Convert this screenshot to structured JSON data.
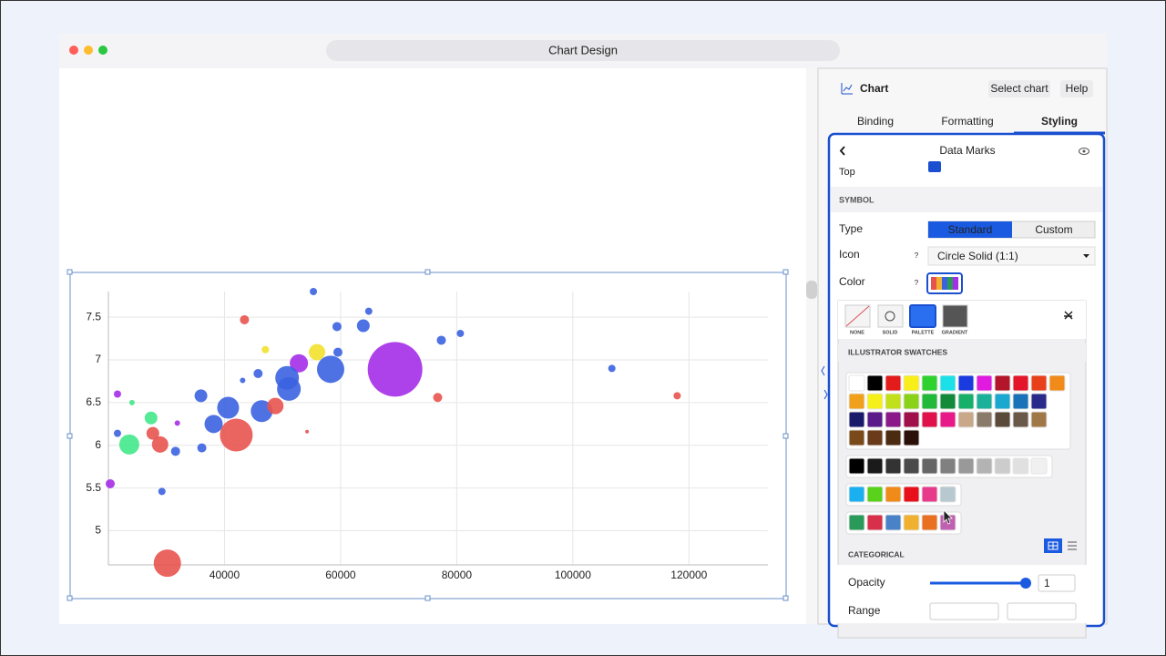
{
  "window": {
    "title": "Chart Design"
  },
  "panel": {
    "header": "Chart",
    "buttons": [
      "Select chart",
      "Help"
    ],
    "tabs": [
      "Binding",
      "Formatting",
      "Styling"
    ],
    "section_title": "Data Marks",
    "top_label": "Top",
    "symbol_heading": "SYMBOL",
    "type_label": "Type",
    "type_options": [
      "Standard",
      "Custom"
    ],
    "icon_label": "Icon",
    "icon_value": "Circle Solid (1:1)",
    "color_label": "Color",
    "help_mark": "?",
    "modes": [
      "NONE",
      "SOLID",
      "PALETTE",
      "GRADIENT"
    ],
    "swatches_heading": "ILLUSTRATOR SWATCHES",
    "swatch_groups": [
      [
        [
          "#ffffff",
          "#000000",
          "#e41b1b",
          "#f7ee1a",
          "#2ed12e",
          "#1ce0e8",
          "#1a3be0",
          "#e01adf",
          "#b3162a",
          "#e3162a",
          "#e8401a",
          "#f08a18"
        ],
        [
          "#f0a01a",
          "#f5ef1a",
          "#c2e01a",
          "#8ad11a",
          "#22b83a",
          "#128a3a",
          "#16b06b",
          "#1ab09a",
          "#1aa8d0",
          "#1a72b8",
          "#2a2a8a"
        ],
        [
          "#1a1a6b",
          "#5a1a8a",
          "#8a1a8a",
          "#a0104a",
          "#e0104a",
          "#e81a8a",
          "#c8a888",
          "#8a7a6a",
          "#5a4a3a",
          "#6a5848",
          "#a07848"
        ],
        [
          "#7a4a1a",
          "#6a3a1a",
          "#4a2a10",
          "#2a1008"
        ]
      ],
      [
        [
          "#000000",
          "#1a1a1a",
          "#333333",
          "#4a4a4a",
          "#666666",
          "#808080",
          "#999999",
          "#b3b3b3",
          "#cccccc",
          "#e0e0e0",
          "#f0f0f0"
        ]
      ],
      [
        [
          "#1ab0f0",
          "#5ad11a",
          "#f08a18",
          "#e8101a",
          "#e83a8a",
          "#b8c8d0"
        ]
      ],
      [
        [
          "#2a9a5a",
          "#d8304a",
          "#4a82c8",
          "#f0b030",
          "#e87020",
          "#c060b0"
        ]
      ]
    ],
    "categorical_heading": "CATEGORICAL",
    "opacity_label": "Opacity",
    "opacity_value": "1",
    "range_label": "Range"
  },
  "chart_data": {
    "type": "bubble",
    "x": [
      55313,
      43438,
      64844,
      63906,
      59375,
      47031,
      55938,
      59531,
      77344,
      80625,
      69375,
      58281,
      52813,
      50781,
      51094,
      45781,
      43125,
      106719,
      117969,
      76719,
      35938,
      40625,
      46406,
      48750,
      21563,
      24063,
      27344,
      38125,
      42031,
      27656,
      21563,
      23594,
      28906,
      31563,
      36094,
      31875,
      20313,
      29219,
      30156,
      54219
    ],
    "y": [
      7.8,
      7.47,
      7.57,
      7.4,
      7.39,
      7.12,
      7.09,
      7.09,
      7.23,
      7.31,
      6.89,
      6.89,
      6.96,
      6.79,
      6.66,
      6.84,
      6.76,
      6.9,
      6.58,
      6.56,
      6.58,
      6.44,
      6.4,
      6.46,
      6.6,
      6.5,
      6.32,
      6.25,
      6.12,
      6.14,
      6.14,
      6.01,
      6.01,
      5.93,
      5.97,
      6.26,
      5.55,
      5.46,
      4.62,
      6.16
    ],
    "sizes": [
      16,
      25,
      16,
      49,
      25,
      16,
      81,
      25,
      25,
      16,
      900,
      225,
      100,
      169,
      169,
      25,
      9,
      16,
      16,
      25,
      49,
      144,
      144,
      81,
      16,
      9,
      49,
      100,
      324,
      49,
      16,
      121,
      81,
      25,
      25,
      9,
      25,
      16,
      225,
      4
    ],
    "colors": [
      "#3b63e0",
      "#e8534f",
      "#3b63e0",
      "#3b63e0",
      "#3b63e0",
      "#f2e12c",
      "#f2e12c",
      "#3b63e0",
      "#3b63e0",
      "#3b63e0",
      "#a52ee8",
      "#3b63e0",
      "#a52ee8",
      "#3b63e0",
      "#3b63e0",
      "#3b63e0",
      "#3b63e0",
      "#3b63e0",
      "#e8534f",
      "#e8534f",
      "#3b63e0",
      "#3b63e0",
      "#3b63e0",
      "#e8534f",
      "#a52ee8",
      "#43e88a",
      "#43e88a",
      "#3b63e0",
      "#e8534f",
      "#e8534f",
      "#3b63e0",
      "#43e88a",
      "#e8534f",
      "#3b63e0",
      "#3b63e0",
      "#a52ee8",
      "#a52ee8",
      "#3b63e0",
      "#e8534f",
      "#e8534f"
    ],
    "xlim": [
      20000,
      133600
    ],
    "ylim": [
      4.6,
      7.8
    ],
    "xticks": [
      40000,
      60000,
      80000,
      100000,
      120000
    ],
    "yticks": [
      5,
      5.5,
      6,
      6.5,
      7,
      7.5
    ],
    "grid": true
  }
}
